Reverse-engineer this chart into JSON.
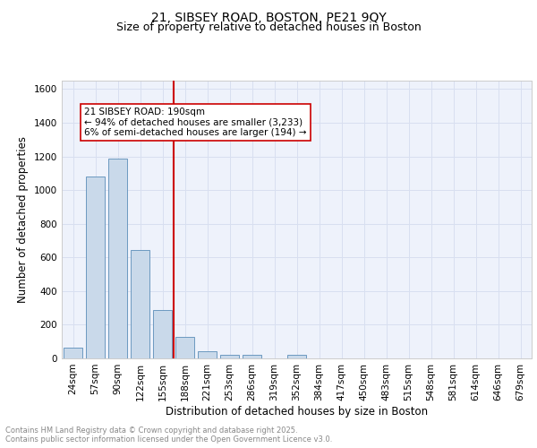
{
  "title1": "21, SIBSEY ROAD, BOSTON, PE21 9QY",
  "title2": "Size of property relative to detached houses in Boston",
  "xlabel": "Distribution of detached houses by size in Boston",
  "ylabel": "Number of detached properties",
  "categories": [
    "24sqm",
    "57sqm",
    "90sqm",
    "122sqm",
    "155sqm",
    "188sqm",
    "221sqm",
    "253sqm",
    "286sqm",
    "319sqm",
    "352sqm",
    "384sqm",
    "417sqm",
    "450sqm",
    "483sqm",
    "515sqm",
    "548sqm",
    "581sqm",
    "614sqm",
    "646sqm",
    "679sqm"
  ],
  "values": [
    65,
    1080,
    1185,
    645,
    285,
    130,
    40,
    22,
    20,
    0,
    20,
    0,
    0,
    0,
    0,
    0,
    0,
    0,
    0,
    0,
    0
  ],
  "bar_color": "#c9d9ea",
  "bar_edge_color": "#5b8db8",
  "vline_color": "#cc0000",
  "vline_index": 4.5,
  "annotation_text": "21 SIBSEY ROAD: 190sqm\n← 94% of detached houses are smaller (3,233)\n6% of semi-detached houses are larger (194) →",
  "annotation_box_edge": "#cc0000",
  "ylim": [
    0,
    1650
  ],
  "yticks": [
    0,
    200,
    400,
    600,
    800,
    1000,
    1200,
    1400,
    1600
  ],
  "grid_color": "#d8dff0",
  "bg_color": "#eef2fb",
  "footnote": "Contains HM Land Registry data © Crown copyright and database right 2025.\nContains public sector information licensed under the Open Government Licence v3.0.",
  "footnote_color": "#888888",
  "title_fontsize": 10,
  "subtitle_fontsize": 9,
  "tick_fontsize": 7.5,
  "label_fontsize": 8.5,
  "annot_fontsize": 7.5
}
